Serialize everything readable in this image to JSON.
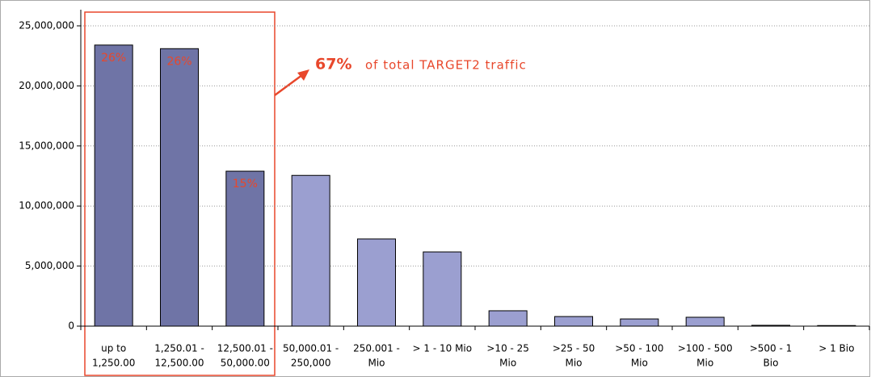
{
  "chart_data": {
    "type": "bar",
    "categories": [
      [
        "up to",
        "1,250.00"
      ],
      [
        "1,250.01 -",
        "12,500.00"
      ],
      [
        "12,500.01 -",
        "50,000.00"
      ],
      [
        "50,000.01 -",
        "250,000"
      ],
      [
        "250.001 -",
        "Mio"
      ],
      [
        "> 1 - 10 Mio"
      ],
      [
        ">10 - 25",
        "Mio"
      ],
      [
        ">25 - 50",
        "Mio"
      ],
      [
        ">50 - 100",
        "Mio"
      ],
      [
        ">100 - 500",
        "Mio"
      ],
      [
        ">500 - 1",
        "Bio"
      ],
      [
        "> 1 Bio"
      ]
    ],
    "values": [
      23400000,
      23100000,
      12900000,
      12550000,
      7260000,
      6180000,
      1280000,
      800000,
      600000,
      740000,
      70000,
      50000
    ],
    "colors": [
      "#6f74a6",
      "#6f74a6",
      "#6f74a6",
      "#9b9fd0",
      "#9b9fd0",
      "#9b9fd0",
      "#9b9fd0",
      "#9b9fd0",
      "#9b9fd0",
      "#9b9fd0",
      "#9b9fd0",
      "#9b9fd0"
    ],
    "share_labels": [
      "26%",
      "26%",
      "15%"
    ],
    "annotation": {
      "highlight": "67%",
      "text": "of total TARGET2 traffic"
    },
    "ylim": [
      0,
      25000000
    ],
    "yticks": [
      0,
      {
        "value": 5000000,
        "label": "5,000,000"
      },
      {
        "value": 10000000,
        "label": "10,000,000"
      },
      {
        "value": 15000000,
        "label": "15,000,000"
      },
      {
        "value": 20000000,
        "label": "20,000,000"
      },
      {
        "value": 25000000,
        "label": "25,000,000"
      }
    ],
    "grid": true
  }
}
